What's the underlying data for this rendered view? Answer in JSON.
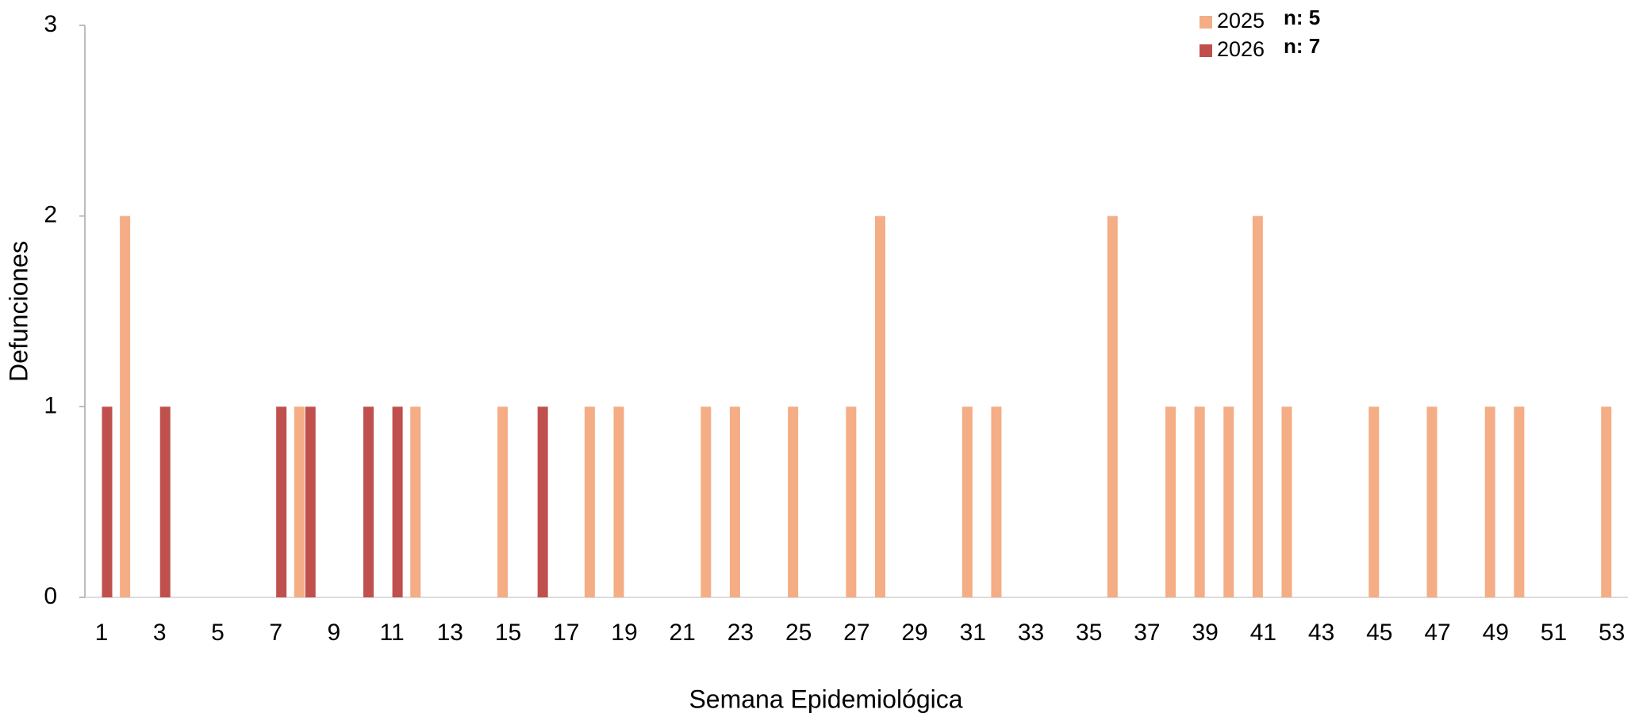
{
  "chart_data": {
    "type": "bar",
    "xlabel": "Semana Epidemiológica",
    "ylabel": "Defunciones",
    "categories": [
      1,
      null,
      3,
      null,
      5,
      null,
      7,
      null,
      9,
      null,
      11,
      null,
      13,
      null,
      15,
      null,
      17,
      null,
      19,
      null,
      21,
      null,
      23,
      null,
      25,
      null,
      27,
      null,
      29,
      null,
      31,
      null,
      33,
      null,
      35,
      null,
      37,
      null,
      39,
      null,
      41,
      null,
      43,
      null,
      45,
      null,
      47,
      null,
      49,
      null,
      51,
      null,
      53
    ],
    "series": [
      {
        "name": "2025",
        "color": "#f4ad85",
        "values": [
          0,
          2,
          0,
          0,
          0,
          0,
          0,
          1,
          0,
          0,
          0,
          1,
          0,
          0,
          1,
          0,
          0,
          1,
          1,
          0,
          0,
          1,
          1,
          0,
          1,
          0,
          1,
          2,
          0,
          0,
          1,
          1,
          0,
          0,
          0,
          2,
          0,
          1,
          1,
          1,
          2,
          1,
          0,
          0,
          1,
          0,
          1,
          0,
          1,
          1,
          0,
          0,
          1
        ]
      },
      {
        "name": "2026",
        "color": "#c0504d",
        "values": [
          1,
          0,
          1,
          0,
          0,
          0,
          1,
          1,
          0,
          1,
          1,
          0,
          0,
          0,
          0,
          1,
          0,
          0,
          0,
          0,
          0,
          0,
          0,
          0,
          0,
          0,
          0,
          0,
          0,
          0,
          0,
          0,
          0,
          0,
          0,
          0,
          0,
          0,
          0,
          0,
          0,
          0,
          0,
          0,
          0,
          0,
          0,
          0,
          0,
          0,
          0,
          0,
          0
        ]
      }
    ],
    "annotations": [
      "n: 5",
      "n: 7"
    ],
    "ylim": [
      0,
      3
    ],
    "yticks": [
      0,
      1,
      2,
      3
    ],
    "grid": false,
    "legend": "top-right"
  }
}
